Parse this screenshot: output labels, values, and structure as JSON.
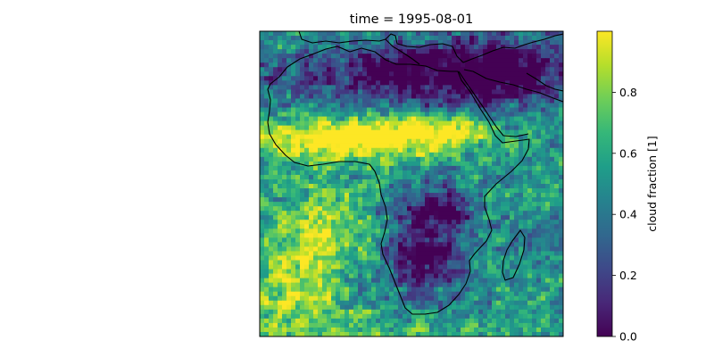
{
  "title": "time = 1995-08-01",
  "map": {
    "region": "Africa",
    "variable": "cloud fraction",
    "projection": "PlateCarree",
    "coastlines": true,
    "colormap": "viridis",
    "value_range": [
      0.0,
      1.0
    ]
  },
  "colorbar": {
    "label": "cloud fraction [1]",
    "orientation": "vertical",
    "ticks": [
      {
        "value": 0.0,
        "label": "0.0"
      },
      {
        "value": 0.2,
        "label": "0.2"
      },
      {
        "value": 0.4,
        "label": "0.4"
      },
      {
        "value": 0.6,
        "label": "0.6"
      },
      {
        "value": 0.8,
        "label": "0.8"
      }
    ],
    "colors": [
      "#440154",
      "#482878",
      "#3e4989",
      "#31688e",
      "#26828e",
      "#1f9e89",
      "#35b779",
      "#6ece58",
      "#b5de2b",
      "#fde725"
    ]
  },
  "colors": {
    "background": "#ffffff",
    "coastline": "#000000",
    "frame": "#000000"
  }
}
